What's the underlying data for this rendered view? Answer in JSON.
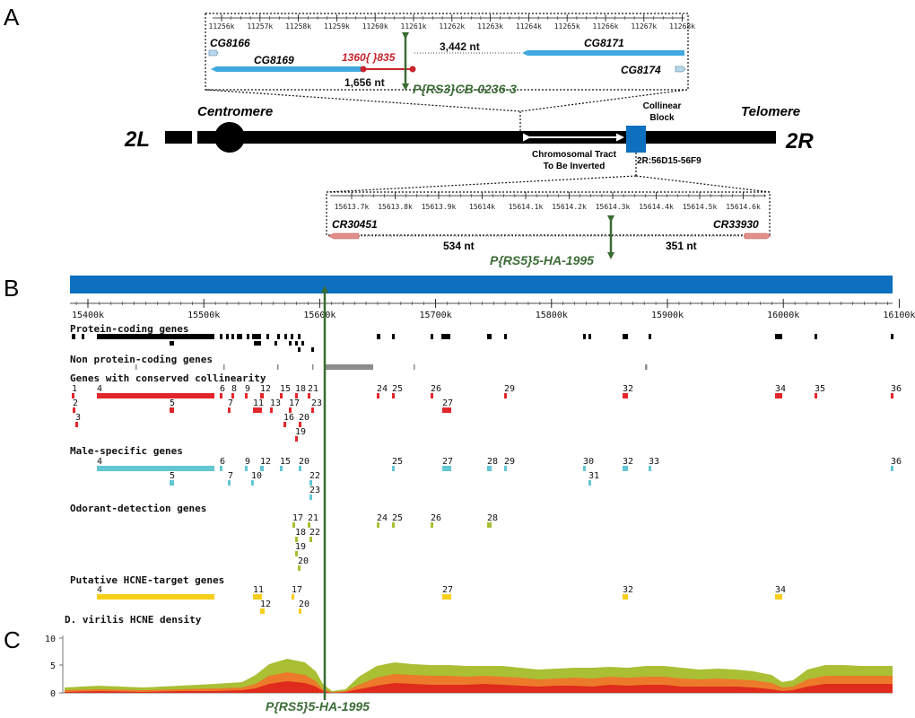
{
  "panels": {
    "a": "A",
    "b": "B",
    "c": "C"
  },
  "colors": {
    "blue": "#0d6fc0",
    "light_blue": "#41a8e0",
    "red": "#e3262b",
    "dark_red": "#c8232c",
    "green": "#3b6b35",
    "cyan": "#63c6d3",
    "olive": "#aabf34",
    "yellow": "#f7cf1b",
    "gray": "#8c8c8c",
    "pink": "#e28f8b"
  },
  "panel_a": {
    "chromosome": {
      "left_arm": "2L",
      "right_arm": "2R",
      "centromere": "Centromere",
      "telomere": "Telomere",
      "collinear_block": [
        "Collinear",
        "Block"
      ],
      "tract": [
        "Chromosomal Tract",
        "To Be Inverted"
      ],
      "band": "2R:56D15-56F9"
    },
    "top_inset": {
      "ticks": [
        "11256k",
        "11257k",
        "11258k",
        "11259k",
        "11260k",
        "11261k",
        "11262k",
        "11263k",
        "11264k",
        "11265k",
        "11266k",
        "11267k",
        "11268k"
      ],
      "genes": [
        "CG8166",
        "CG8169",
        "CG8171",
        "CG8174"
      ],
      "deletion": "1360{ }835",
      "dist_left": "1,656 nt",
      "dist_right": "3,442 nt",
      "insertion": "P{RS3}CB-0236-3"
    },
    "bottom_inset": {
      "ticks": [
        "15613.7k",
        "15613.8k",
        "15613.9k",
        "15614k",
        "15614.1k",
        "15614.2k",
        "15614.3k",
        "15614.4k",
        "15614.5k",
        "15614.6k"
      ],
      "genes": [
        "CR30451",
        "CR33930"
      ],
      "dist_left": "534 nt",
      "dist_right": "351 nt",
      "insertion": "P{RS5}5-HA-1995"
    }
  },
  "panel_b": {
    "axis_ticks": [
      "15400k",
      "15500k",
      "15600k",
      "15700k",
      "15800k",
      "15900k",
      "16000k",
      "16100k"
    ],
    "tracks": [
      {
        "title": "Protein-coding genes"
      },
      {
        "title": "Non protein-coding genes"
      },
      {
        "title": "Genes with conserved collinearity"
      },
      {
        "title": "Male-specific genes"
      },
      {
        "title": "Odorant-detection genes"
      },
      {
        "title": "Putative HCNE-target genes"
      }
    ],
    "collinearity_labels": [
      "1",
      "2",
      "3",
      "4",
      "5",
      "6",
      "7",
      "8",
      "9",
      "10",
      "11",
      "12",
      "13",
      "15",
      "16",
      "17",
      "18",
      "19",
      "20",
      "21",
      "22",
      "23",
      "24",
      "25",
      "26",
      "27",
      "28",
      "29",
      "30",
      "31",
      "32",
      "33",
      "34",
      "35",
      "36"
    ]
  },
  "panel_c": {
    "title": "D. virilis HCNE density",
    "y_ticks": [
      "10",
      "5",
      "0"
    ],
    "insertion_label": "P{RS5}5-HA-1995"
  }
}
